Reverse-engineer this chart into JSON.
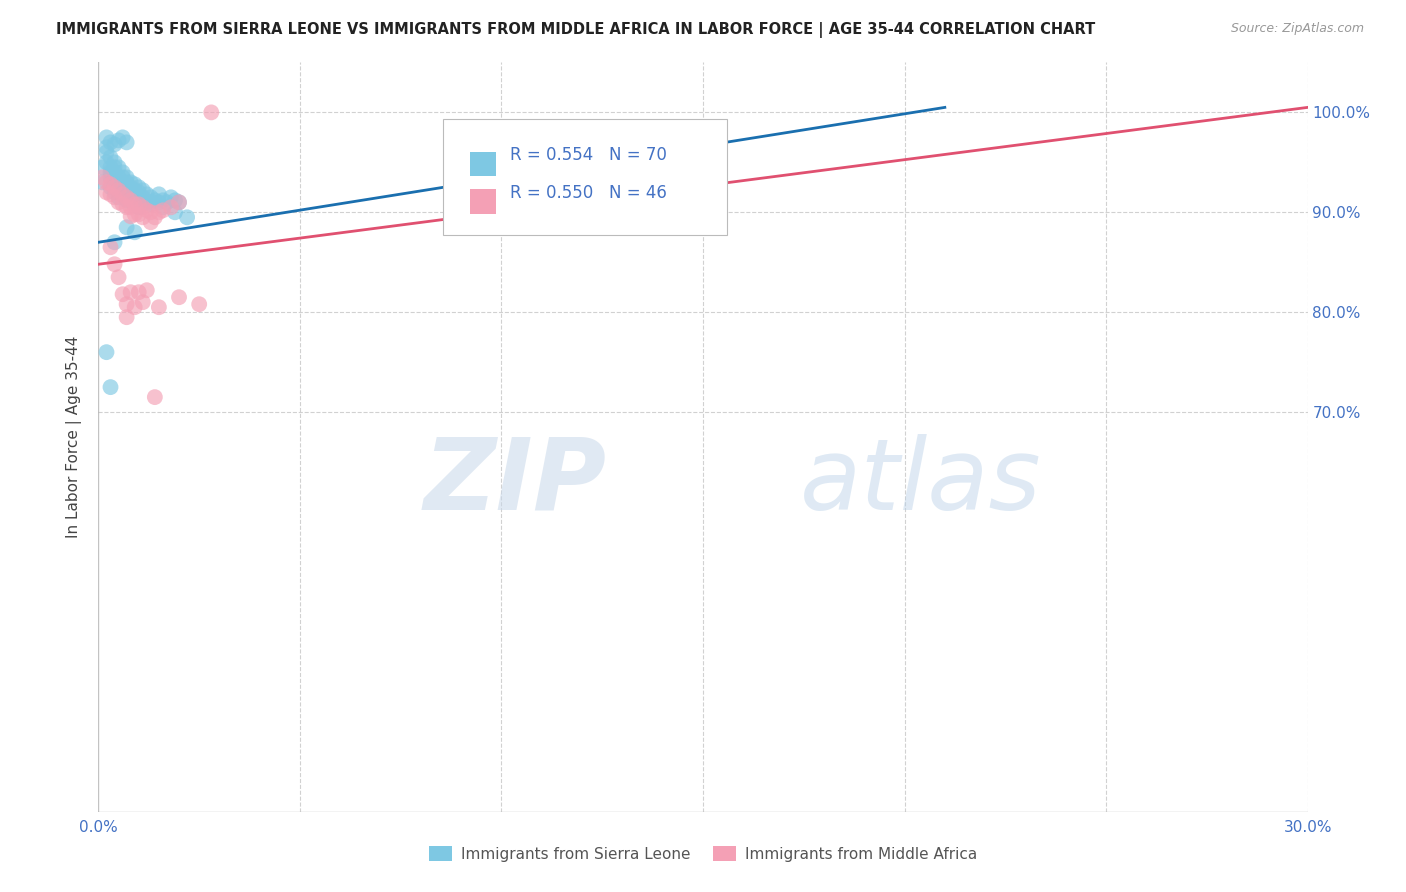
{
  "title": "IMMIGRANTS FROM SIERRA LEONE VS IMMIGRANTS FROM MIDDLE AFRICA IN LABOR FORCE | AGE 35-44 CORRELATION CHART",
  "source": "Source: ZipAtlas.com",
  "ylabel": "In Labor Force | Age 35-44",
  "xlim": [
    0.0,
    0.3
  ],
  "ylim": [
    0.3,
    1.05
  ],
  "xticks": [
    0.0,
    0.05,
    0.1,
    0.15,
    0.2,
    0.25,
    0.3
  ],
  "xticklabels": [
    "0.0%",
    "",
    "",
    "",
    "",
    "",
    "30.0%"
  ],
  "yticks_left": [
    0.3,
    0.4,
    0.5,
    0.6,
    0.7,
    0.8,
    0.9,
    1.0
  ],
  "yticklabels_left": [
    "",
    "",
    "",
    "",
    "",
    "",
    "",
    ""
  ],
  "yticks_right": [
    0.7,
    0.8,
    0.9,
    1.0
  ],
  "yticklabels_right": [
    "70.0%",
    "80.0%",
    "90.0%",
    "100.0%"
  ],
  "sierra_leone_color": "#7ec8e3",
  "middle_africa_color": "#f4a0b5",
  "sierra_leone_line_color": "#1a6faf",
  "middle_africa_line_color": "#e05070",
  "legend_sierra_leone": "Immigrants from Sierra Leone",
  "legend_middle_africa": "Immigrants from Middle Africa",
  "sierra_leone_R": 0.554,
  "sierra_leone_N": 70,
  "middle_africa_R": 0.55,
  "middle_africa_N": 46,
  "watermark_zip": "ZIP",
  "watermark_atlas": "atlas",
  "sierra_leone_x": [
    0.001,
    0.001,
    0.002,
    0.002,
    0.002,
    0.002,
    0.003,
    0.003,
    0.003,
    0.003,
    0.003,
    0.004,
    0.004,
    0.004,
    0.004,
    0.004,
    0.004,
    0.005,
    0.005,
    0.005,
    0.005,
    0.005,
    0.006,
    0.006,
    0.006,
    0.006,
    0.006,
    0.007,
    0.007,
    0.007,
    0.007,
    0.007,
    0.008,
    0.008,
    0.008,
    0.009,
    0.009,
    0.009,
    0.01,
    0.01,
    0.01,
    0.011,
    0.011,
    0.012,
    0.012,
    0.013,
    0.013,
    0.014,
    0.015,
    0.015,
    0.016,
    0.017,
    0.018,
    0.019,
    0.02,
    0.003,
    0.004,
    0.005,
    0.006,
    0.007,
    0.002,
    0.003,
    0.004,
    0.007,
    0.009,
    0.01,
    0.013,
    0.016,
    0.019,
    0.022
  ],
  "sierra_leone_y": [
    0.93,
    0.945,
    0.95,
    0.96,
    0.965,
    0.975,
    0.955,
    0.945,
    0.94,
    0.935,
    0.925,
    0.95,
    0.945,
    0.94,
    0.935,
    0.93,
    0.92,
    0.945,
    0.935,
    0.93,
    0.925,
    0.915,
    0.94,
    0.935,
    0.93,
    0.925,
    0.918,
    0.935,
    0.93,
    0.925,
    0.92,
    0.912,
    0.93,
    0.925,
    0.918,
    0.928,
    0.922,
    0.915,
    0.925,
    0.92,
    0.912,
    0.922,
    0.915,
    0.918,
    0.91,
    0.915,
    0.908,
    0.912,
    0.918,
    0.91,
    0.912,
    0.91,
    0.915,
    0.912,
    0.91,
    0.97,
    0.968,
    0.972,
    0.975,
    0.97,
    0.76,
    0.725,
    0.87,
    0.885,
    0.88,
    0.905,
    0.91,
    0.905,
    0.9,
    0.895
  ],
  "middle_africa_x": [
    0.001,
    0.002,
    0.002,
    0.003,
    0.003,
    0.004,
    0.004,
    0.005,
    0.005,
    0.006,
    0.006,
    0.007,
    0.007,
    0.008,
    0.008,
    0.008,
    0.009,
    0.009,
    0.01,
    0.01,
    0.011,
    0.011,
    0.012,
    0.013,
    0.013,
    0.014,
    0.015,
    0.016,
    0.018,
    0.02,
    0.003,
    0.004,
    0.005,
    0.006,
    0.007,
    0.008,
    0.009,
    0.01,
    0.011,
    0.012,
    0.015,
    0.02,
    0.025,
    0.028,
    0.007,
    0.014
  ],
  "middle_africa_y": [
    0.935,
    0.93,
    0.92,
    0.928,
    0.918,
    0.925,
    0.915,
    0.922,
    0.91,
    0.918,
    0.908,
    0.915,
    0.905,
    0.912,
    0.905,
    0.896,
    0.908,
    0.898,
    0.908,
    0.898,
    0.905,
    0.895,
    0.902,
    0.9,
    0.89,
    0.895,
    0.9,
    0.902,
    0.905,
    0.91,
    0.865,
    0.848,
    0.835,
    0.818,
    0.808,
    0.82,
    0.805,
    0.82,
    0.81,
    0.822,
    0.805,
    0.815,
    0.808,
    1.0,
    0.795,
    0.715
  ],
  "sl_line_x0": 0.0,
  "sl_line_x1": 0.21,
  "sl_line_y0": 0.87,
  "sl_line_y1": 1.005,
  "ma_line_x0": 0.0,
  "ma_line_x1": 0.3,
  "ma_line_y0": 0.848,
  "ma_line_y1": 1.005
}
